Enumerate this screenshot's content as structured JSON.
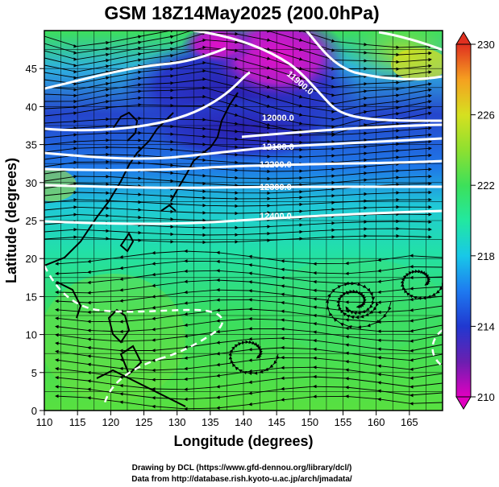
{
  "title": "GSM 18Z14May2025 (200.0hPa)",
  "xlabel": "Longitude (degrees)",
  "ylabel": "Latitude  (degrees)",
  "credits": {
    "line1": "Drawing by DCL (https://www.gfd-dennou.org/library/dcl/)",
    "line2": "Data from http://database.rish.kyoto-u.ac.jp/arch/jmadata/"
  },
  "x_ticks": [
    "110",
    "115",
    "120",
    "125",
    "130",
    "135",
    "140",
    "145",
    "150",
    "155",
    "160",
    "165"
  ],
  "y_ticks": [
    "0",
    "5",
    "10",
    "15",
    "20",
    "25",
    "30",
    "35",
    "40",
    "45"
  ],
  "colorbar": {
    "ticks": [
      "210",
      "214",
      "218",
      "222",
      "226",
      "230"
    ],
    "min": 210,
    "max": 230,
    "colors": [
      "#e000c0",
      "#6a1fb0",
      "#2038d0",
      "#1e7af0",
      "#18c8e8",
      "#22e8a0",
      "#3de05a",
      "#8ee030",
      "#d6e020",
      "#f5a020",
      "#e03020"
    ]
  },
  "contour_labels": [
    "11900.0",
    "12000.0",
    "12100.0",
    "12200.0",
    "12300.0",
    "12400.0"
  ],
  "chart_data": {
    "type": "map",
    "title": "GSM 18Z14May2025 (200.0hPa)",
    "xlabel": "Longitude (degrees)",
    "ylabel": "Latitude  (degrees)",
    "xlim": [
      110,
      170
    ],
    "ylim": [
      0,
      50
    ],
    "colorbar_range": [
      210,
      230
    ],
    "geopotential_height_contours": [
      11900,
      12000,
      12100,
      12200,
      12300,
      12400
    ],
    "overlay": "wind streamlines with arrowheads",
    "grid": true
  }
}
